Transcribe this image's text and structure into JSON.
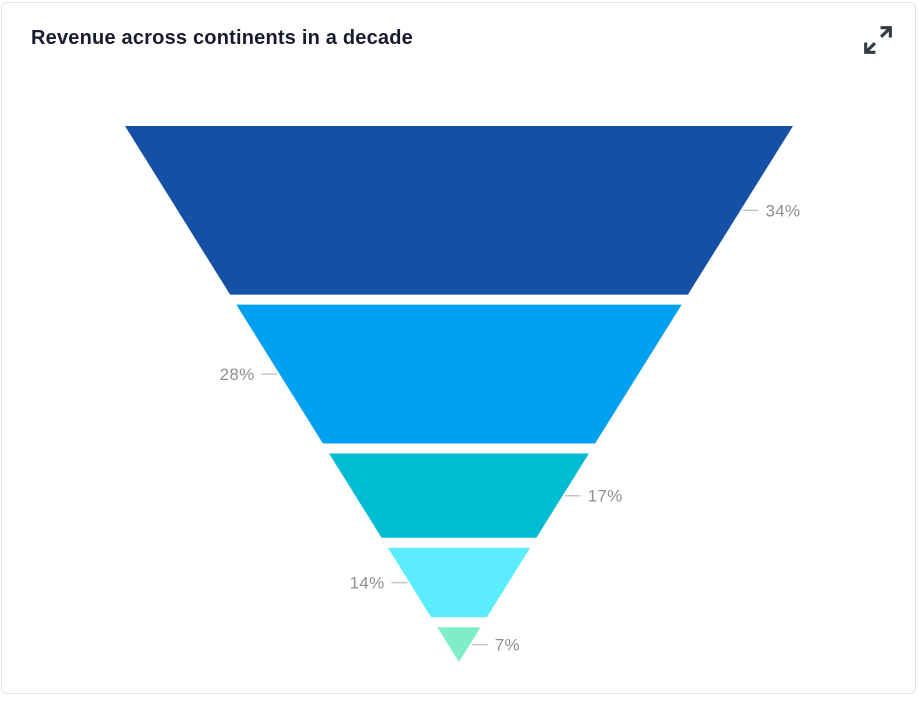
{
  "card": {
    "title": "Revenue across continents in a decade"
  },
  "toolbar": {
    "expand_icon": "expand-arrows-icon"
  },
  "chart_data": {
    "type": "funnel",
    "title": "Revenue across continents in a decade",
    "orientation": "inverted-pyramid",
    "unit": "%",
    "legend": "none",
    "axes": "none",
    "segments": [
      {
        "label": "34%",
        "value": 34,
        "color": "#1450a5",
        "label_side": "right"
      },
      {
        "label": "28%",
        "value": 28,
        "color": "#02a0f0",
        "label_side": "left"
      },
      {
        "label": "17%",
        "value": 17,
        "color": "#00bcd2",
        "label_side": "right"
      },
      {
        "label": "14%",
        "value": 14,
        "color": "#5bedfe",
        "label_side": "left"
      },
      {
        "label": "7%",
        "value": 7,
        "color": "#7feec7",
        "label_side": "right"
      }
    ],
    "label_color": "#8f8f8f",
    "connector_color": "#c4c4c4"
  }
}
